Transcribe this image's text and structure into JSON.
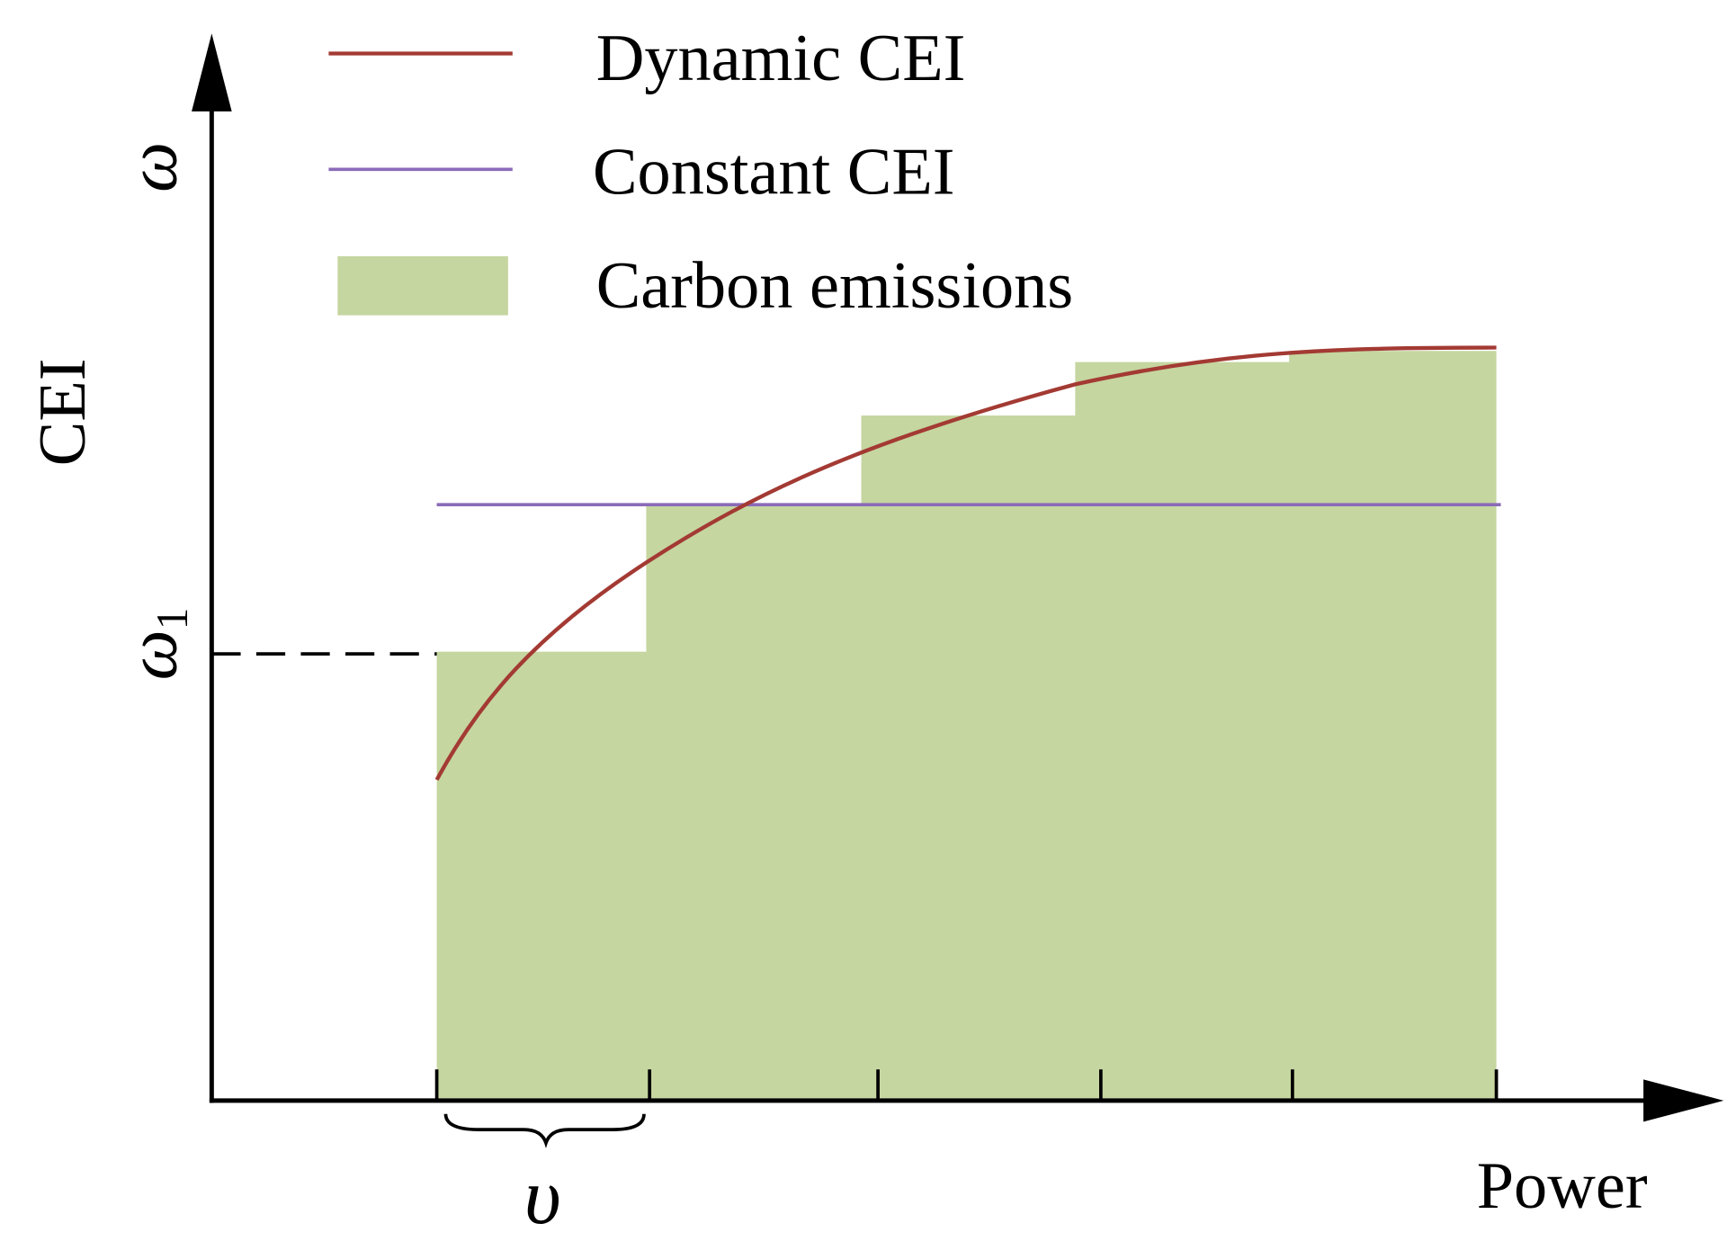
{
  "legend": {
    "dynamic": "Dynamic CEI",
    "constant": "Constant CEI",
    "emissions": "Carbon emissions"
  },
  "axes": {
    "y_label": "CEI",
    "x_label": "Power",
    "y_symbol": "ω",
    "y_marker": "ω",
    "y_marker_subscript": "1",
    "x_step": "υ"
  }
}
